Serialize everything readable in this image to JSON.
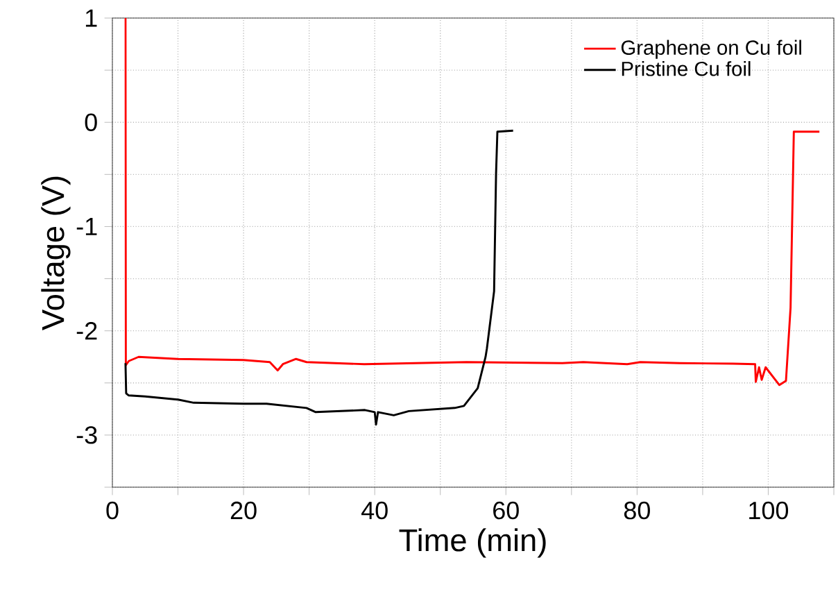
{
  "chart_data": {
    "type": "line",
    "xlabel": "Time (min)",
    "ylabel": "Voltage (V)",
    "xlim": [
      0,
      110
    ],
    "ylim": [
      -3.5,
      1
    ],
    "xticks": [
      0,
      {
        "value": 10,
        "label": null
      },
      20,
      {
        "value": 30,
        "label": null
      },
      40,
      {
        "value": 50,
        "label": null
      },
      60,
      {
        "value": 70,
        "label": null
      },
      80,
      {
        "value": 90,
        "label": null
      },
      100,
      {
        "value": 110,
        "label": null
      }
    ],
    "yticks": [
      {
        "value": -3.5,
        "label": null
      },
      -3,
      {
        "value": -2.5,
        "label": null
      },
      -2,
      {
        "value": -1.5,
        "label": null
      },
      -1,
      {
        "value": -0.5,
        "label": null
      },
      0,
      {
        "value": 0.5,
        "label": null
      },
      1
    ],
    "grid": true,
    "legend": "top right",
    "marker": "none",
    "line_style": "solid",
    "series": [
      {
        "name": "Graphene on Cu foil",
        "color": "#ff0000",
        "x": [
          2.0,
          2.05,
          2.5,
          4,
          10,
          20,
          24,
          25.2,
          26,
          28,
          29.6,
          38.4,
          54,
          68.6,
          71.8,
          78.5,
          80.5,
          86.5,
          94.6,
          98.0,
          98.1,
          98.6,
          99.0,
          99.6,
          101.7,
          102.7,
          103.4,
          103.9,
          107.8
        ],
        "values": [
          1,
          -2.33,
          -2.29,
          -2.25,
          -2.27,
          -2.28,
          -2.3,
          -2.38,
          -2.32,
          -2.27,
          -2.3,
          -2.32,
          -2.3,
          -2.31,
          -2.3,
          -2.32,
          -2.3,
          -2.31,
          -2.315,
          -2.32,
          -2.49,
          -2.35,
          -2.47,
          -2.35,
          -2.52,
          -2.48,
          -1.78,
          -0.09,
          -0.09
        ]
      },
      {
        "name": "Pristine Cu foil",
        "color": "#000000",
        "x": [
          2.0,
          2.1,
          2.5,
          5,
          10,
          12.4,
          20,
          23.5,
          29.6,
          31,
          38.5,
          40.0,
          40.2,
          40.5,
          42.9,
          45.2,
          52.2,
          53.6,
          55.7,
          56.9,
          57.1,
          58.2,
          58.5,
          58.7,
          61.1
        ],
        "values": [
          -2.31,
          -2.6,
          -2.62,
          -2.63,
          -2.66,
          -2.69,
          -2.7,
          -2.7,
          -2.74,
          -2.78,
          -2.76,
          -2.78,
          -2.9,
          -2.78,
          -2.81,
          -2.77,
          -2.74,
          -2.72,
          -2.55,
          -2.25,
          -2.17,
          -1.62,
          -0.49,
          -0.09,
          -0.08
        ]
      }
    ]
  }
}
